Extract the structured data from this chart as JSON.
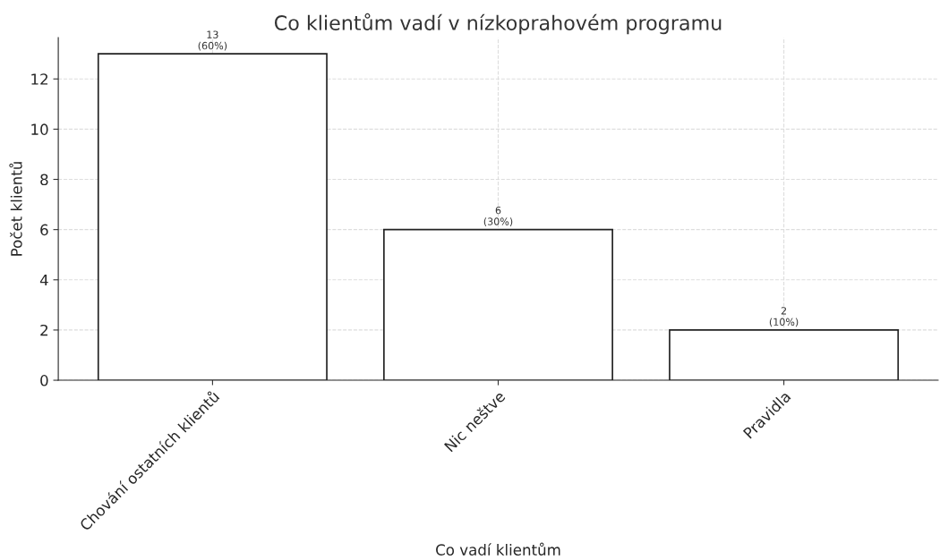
{
  "chart_data": {
    "type": "bar",
    "title": "Co klientům vadí v nízkoprahovém programu",
    "xlabel": "Co vadí klientům",
    "ylabel": "Počet klientů",
    "categories": [
      "Chování ostatních klientů",
      "Nic neštve",
      "Pravidla"
    ],
    "values": [
      13,
      6,
      2
    ],
    "color": "#ffffff",
    "value_labels": [
      "13\n(60%)",
      "6\n(30%)",
      "2\n(10%)"
    ],
    "ylim": [
      0,
      13.65
    ],
    "yticks": [
      0,
      2,
      4,
      6,
      8,
      10,
      12
    ],
    "grid": true,
    "legend": false
  }
}
